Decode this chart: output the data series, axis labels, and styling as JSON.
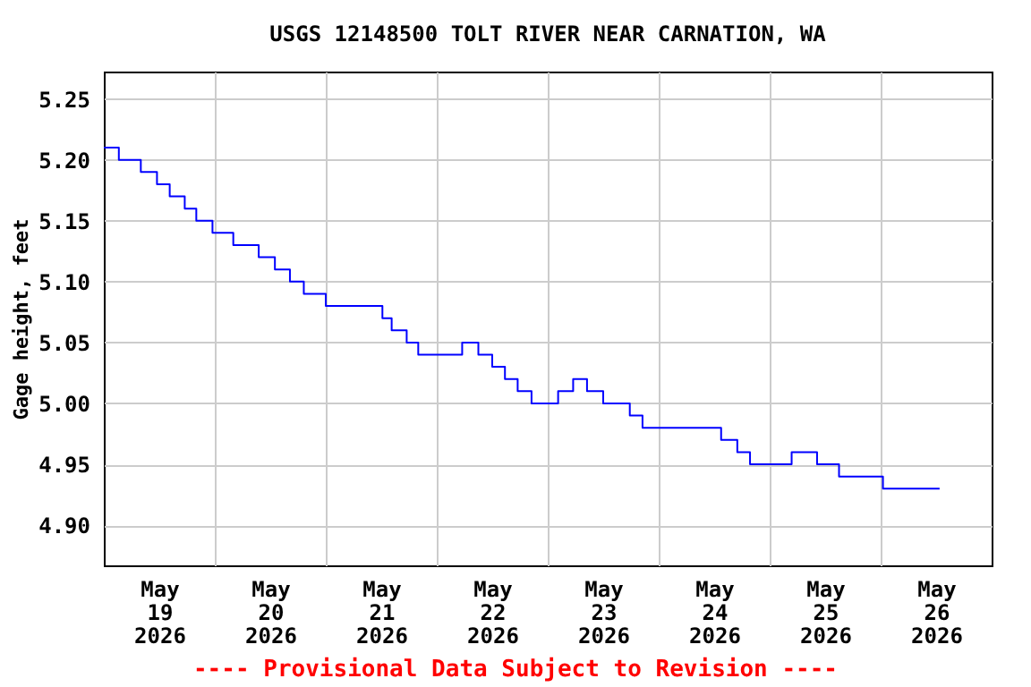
{
  "chart_data": {
    "type": "step",
    "title": "USGS 12148500 TOLT RIVER NEAR CARNATION, WA",
    "ylabel": "Gage height, feet",
    "annotations": [
      "---- Provisional Data Subject to Revision ----"
    ],
    "x": [
      "2026-05-19T00:00",
      "2026-05-19T03:15",
      "2026-05-19T08:00",
      "2026-05-19T11:30",
      "2026-05-19T14:15",
      "2026-05-19T17:30",
      "2026-05-19T20:00",
      "2026-05-19T23:30",
      "2026-05-20T04:00",
      "2026-05-20T09:30",
      "2026-05-20T13:00",
      "2026-05-20T16:15",
      "2026-05-20T19:15",
      "2026-05-21T00:00",
      "2026-05-21T12:15",
      "2026-05-21T14:15",
      "2026-05-21T17:30",
      "2026-05-21T20:00",
      "2026-05-22T05:30",
      "2026-05-22T09:00",
      "2026-05-22T12:00",
      "2026-05-22T14:45",
      "2026-05-22T17:30",
      "2026-05-22T20:30",
      "2026-05-23T02:15",
      "2026-05-23T05:30",
      "2026-05-23T08:30",
      "2026-05-23T12:00",
      "2026-05-23T17:45",
      "2026-05-23T20:30",
      "2026-05-24T13:30",
      "2026-05-24T17:00",
      "2026-05-24T19:45",
      "2026-05-25T04:45",
      "2026-05-25T10:15",
      "2026-05-25T15:00",
      "2026-05-26T00:30",
      "2026-05-26T12:45"
    ],
    "series": [
      {
        "color": "#0000ff",
        "values": [
          5.21,
          5.2,
          5.19,
          5.18,
          5.17,
          5.16,
          5.15,
          5.14,
          5.13,
          5.12,
          5.11,
          5.1,
          5.09,
          5.08,
          5.07,
          5.06,
          5.05,
          5.04,
          5.05,
          5.04,
          5.03,
          5.02,
          5.01,
          5.0,
          5.01,
          5.02,
          5.01,
          5.0,
          4.99,
          4.98,
          4.97,
          4.96,
          4.95,
          4.96,
          4.95,
          4.94,
          4.93,
          4.93
        ]
      }
    ],
    "xlim": [
      "2026-05-19T00:00",
      "2026-05-27T00:00"
    ],
    "xticks": [
      {
        "value": "2026-05-19T12:00",
        "label": "May\n19\n2026"
      },
      {
        "value": "2026-05-20T00:00",
        "label": null
      },
      {
        "value": "2026-05-20T12:00",
        "label": "May\n20\n2026"
      },
      {
        "value": "2026-05-21T00:00",
        "label": null
      },
      {
        "value": "2026-05-21T12:00",
        "label": "May\n21\n2026"
      },
      {
        "value": "2026-05-22T00:00",
        "label": null
      },
      {
        "value": "2026-05-22T12:00",
        "label": "May\n22\n2026"
      },
      {
        "value": "2026-05-23T00:00",
        "label": null
      },
      {
        "value": "2026-05-23T12:00",
        "label": "May\n23\n2026"
      },
      {
        "value": "2026-05-24T00:00",
        "label": null
      },
      {
        "value": "2026-05-24T12:00",
        "label": "May\n24\n2026"
      },
      {
        "value": "2026-05-25T00:00",
        "label": null
      },
      {
        "value": "2026-05-25T12:00",
        "label": "May\n25\n2026"
      },
      {
        "value": "2026-05-26T00:00",
        "label": null
      },
      {
        "value": "2026-05-26T12:00",
        "label": "May\n26\n2026"
      }
    ],
    "ylim": [
      4.867,
      5.2725
    ],
    "yticks": [
      {
        "value": 4.9,
        "label": "4.90"
      },
      {
        "value": 4.95,
        "label": "4.95"
      },
      {
        "value": 5.0,
        "label": "5.00"
      },
      {
        "value": 5.05,
        "label": "5.05"
      },
      {
        "value": 5.1,
        "label": "5.10"
      },
      {
        "value": 5.15,
        "label": "5.15"
      },
      {
        "value": 5.2,
        "label": "5.20"
      },
      {
        "value": 5.25,
        "label": "5.25"
      }
    ],
    "grid": true,
    "line_style": "solid"
  }
}
